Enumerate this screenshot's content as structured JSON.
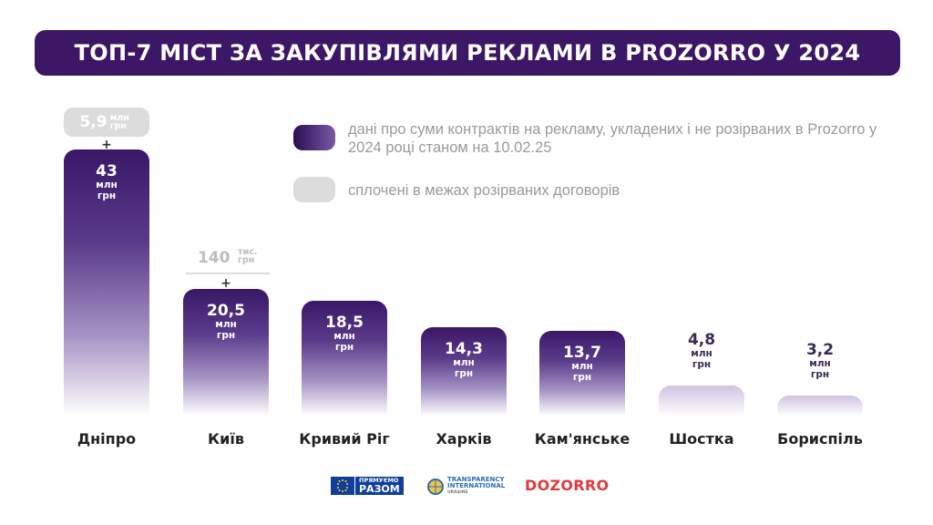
{
  "title": "ТОП-7 МІСТ ЗА ЗАКУПІВЛЯМИ РЕКЛАМИ В PROZORRO У 2024",
  "legend": {
    "main": "дані про суми контрактів на рекламу, укладених і не розірваних в Prozorro у 2024 році станом на 10.02.25",
    "extra": "сплочені в межах розірваних договорів"
  },
  "colors": {
    "title_bg": "#3c1766",
    "bar_dark": "#3a1767",
    "extra_gray": "#dcdcdc"
  },
  "chart_data": {
    "type": "bar",
    "categories": [
      "Дніпро",
      "Київ",
      "Кривий Ріг",
      "Харків",
      "Кам'янське",
      "Шостка",
      "Бориспіль"
    ],
    "values": [
      43,
      20.5,
      18.5,
      14.3,
      13.7,
      4.8,
      3.2
    ],
    "value_labels": [
      "43",
      "20,5",
      "18,5",
      "14,3",
      "13,7",
      "4,8",
      "3,2"
    ],
    "unit_label": "млн грн",
    "extras": [
      {
        "city": "Дніпро",
        "value_label": "5,9",
        "unit": "млн грн"
      },
      {
        "city": "Київ",
        "value_label": "140",
        "unit": "тис. грн"
      }
    ],
    "plus_sign": "+",
    "title": "ТОП-7 МІСТ ЗА ЗАКУПІВЛЯМИ РЕКЛАМИ В PROZORRO У 2024",
    "xlabel": "",
    "ylabel": "",
    "grid": false,
    "legend_position": "top-right"
  },
  "logos": {
    "eu_line1": "ПРЯМУЄМО",
    "eu_line2": "РАЗОМ",
    "ti_line1": "TRANSPARENCY",
    "ti_line2": "INTERNATIONAL",
    "ti_line3": "UKRAINE",
    "dozorro": "DOZORRO"
  }
}
